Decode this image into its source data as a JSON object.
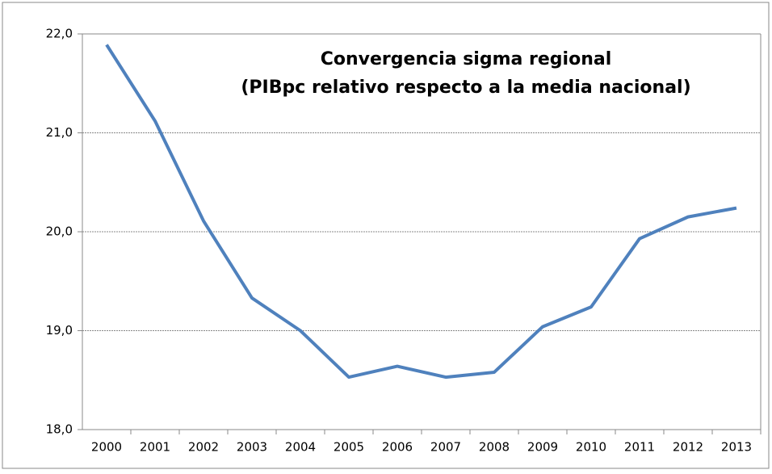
{
  "chart_data": {
    "type": "line",
    "title": "Convergencia sigma regional",
    "subtitle": "(PIBpc relativo respecto a la media nacional)",
    "categories": [
      "2000",
      "2001",
      "2002",
      "2003",
      "2004",
      "2005",
      "2006",
      "2007",
      "2008",
      "2009",
      "2010",
      "2011",
      "2012",
      "2013"
    ],
    "series": [
      {
        "color": "#4f81bd",
        "values": [
          21.89,
          21.12,
          20.11,
          19.33,
          19.0,
          18.53,
          18.64,
          18.53,
          18.58,
          19.04,
          19.24,
          19.93,
          20.15,
          20.24
        ]
      }
    ],
    "ylim": [
      18,
      22
    ],
    "yticks": [
      {
        "value": 18,
        "label": "18,0"
      },
      {
        "value": 19,
        "label": "19,0"
      },
      {
        "value": 20,
        "label": "20,0"
      },
      {
        "value": 21,
        "label": "21,0"
      },
      {
        "value": 22,
        "label": "22,0"
      }
    ],
    "grid": true
  }
}
